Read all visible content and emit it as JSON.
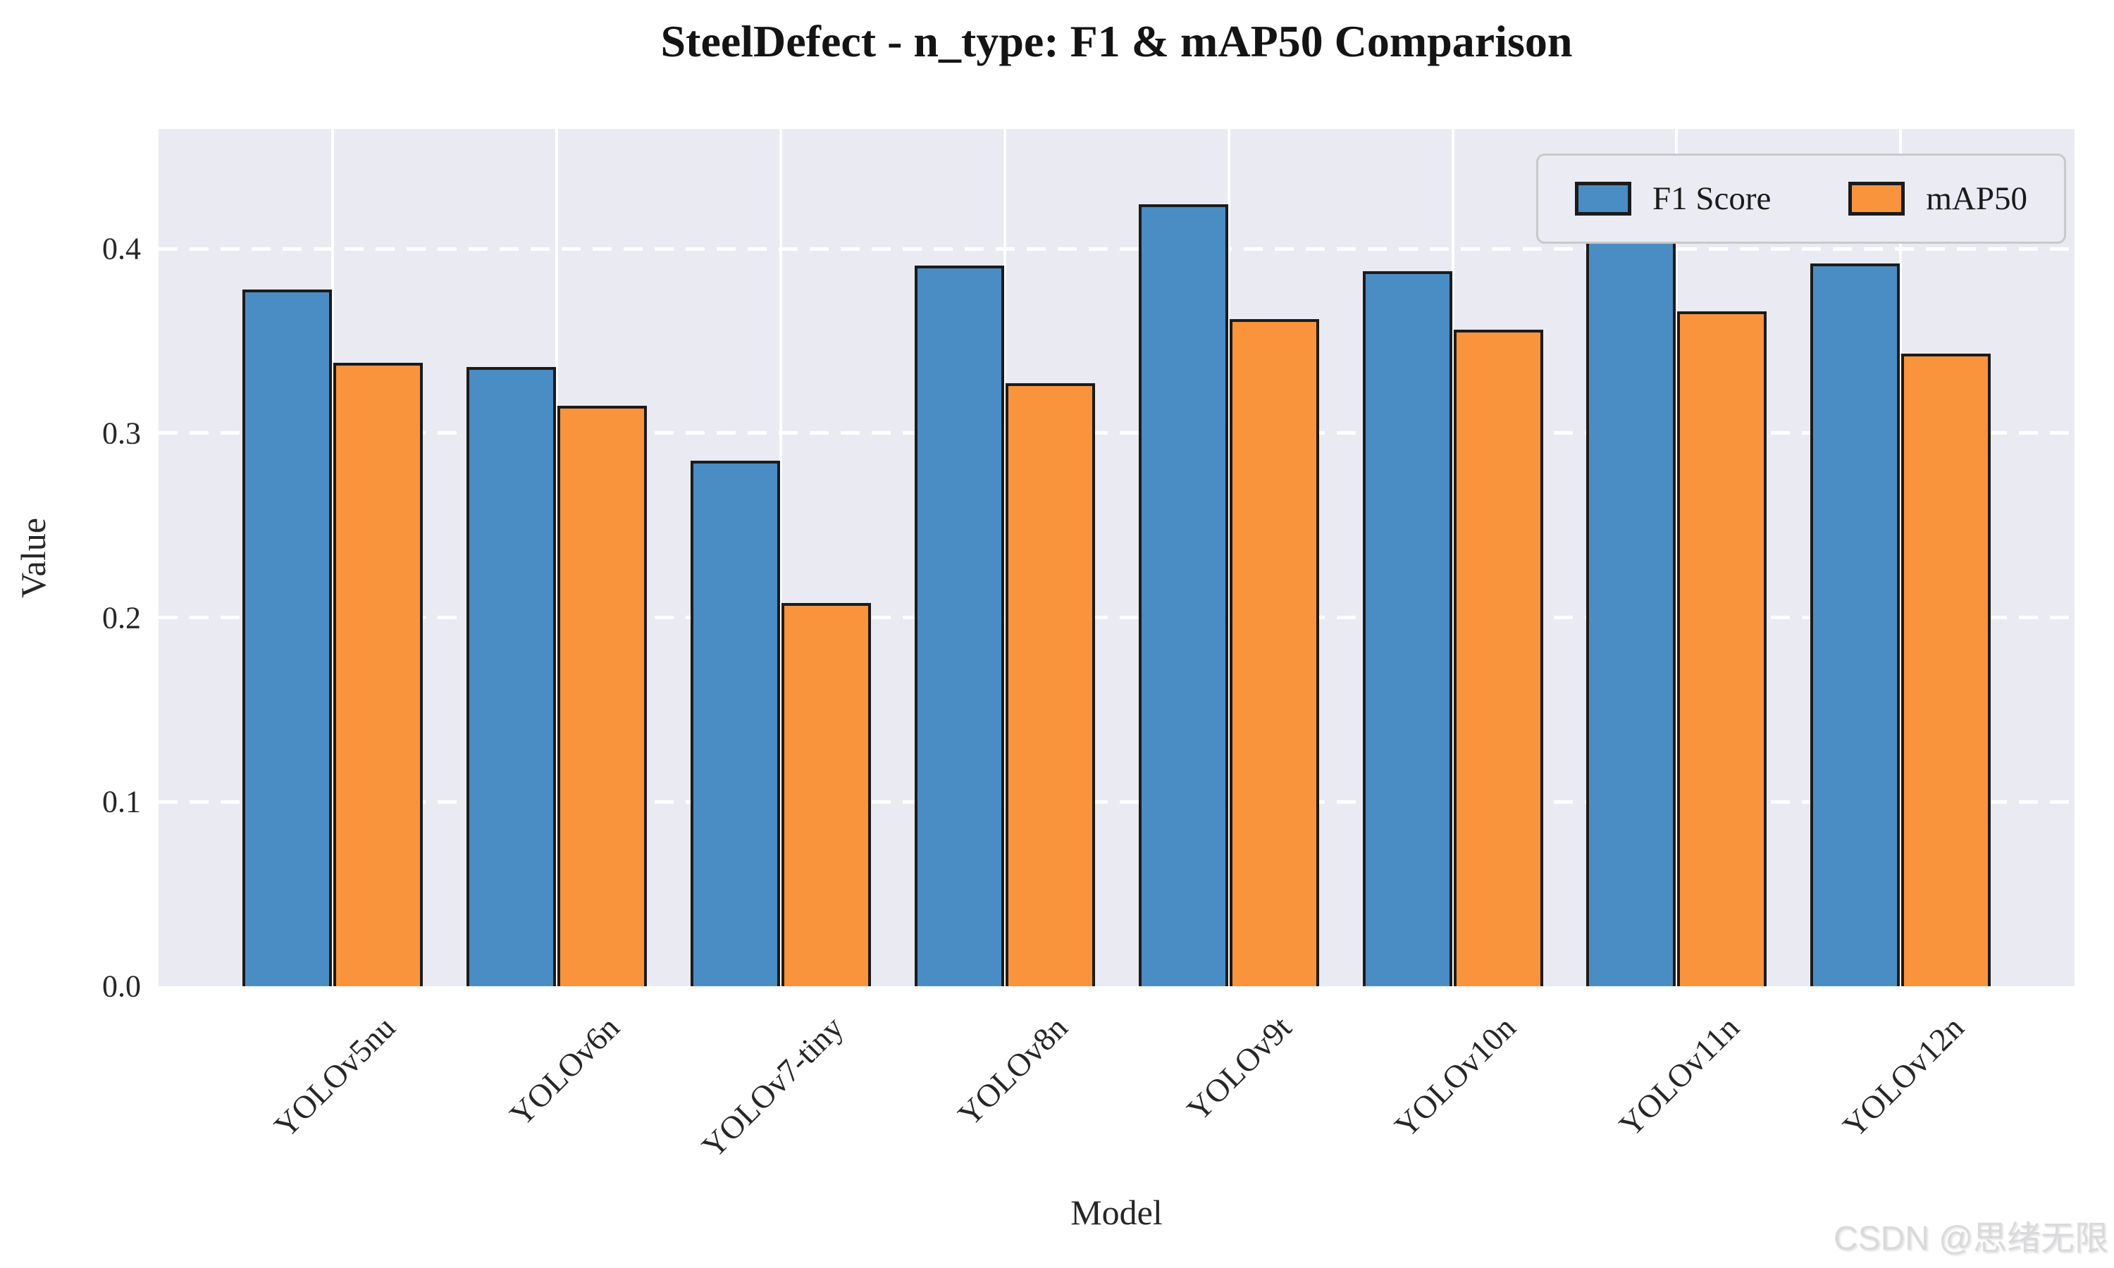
{
  "title": "SteelDefect - n_type: F1 & mAP50 Comparison",
  "watermark": "CSDN @思绪无限",
  "chart_data": {
    "type": "bar",
    "title": "SteelDefect - n_type: F1 & mAP50 Comparison",
    "xlabel": "Model",
    "ylabel": "Value",
    "categories": [
      "YOLOv5nu",
      "YOLOv6n",
      "YOLOv7-tiny",
      "YOLOv8n",
      "YOLOv9t",
      "YOLOv10n",
      "YOLOv11n",
      "YOLOv12n"
    ],
    "series": [
      {
        "name": "F1 Score",
        "color": "#4a8dc4",
        "values": [
          0.378,
          0.336,
          0.285,
          0.391,
          0.424,
          0.388,
          0.41,
          0.392
        ]
      },
      {
        "name": "mAP50",
        "color": "#f9943c",
        "values": [
          0.338,
          0.315,
          0.208,
          0.327,
          0.362,
          0.356,
          0.366,
          0.343
        ]
      }
    ],
    "ylim": [
      0,
      0.465
    ],
    "yticks": [
      0.0,
      0.1,
      0.2,
      0.3,
      0.4
    ],
    "ytick_labels": [
      "0.0",
      "0.1",
      "0.2",
      "0.3",
      "0.4"
    ],
    "grid": "horizontal-dashed-white, vertical-solid-white-at-category-centers",
    "legend_position": "upper right",
    "plot_bg_color": "#e9eaf2",
    "grid_color": "#ffffff",
    "bar_edge_color": "#1b1b1b",
    "watermark_color": "#dadadd"
  }
}
